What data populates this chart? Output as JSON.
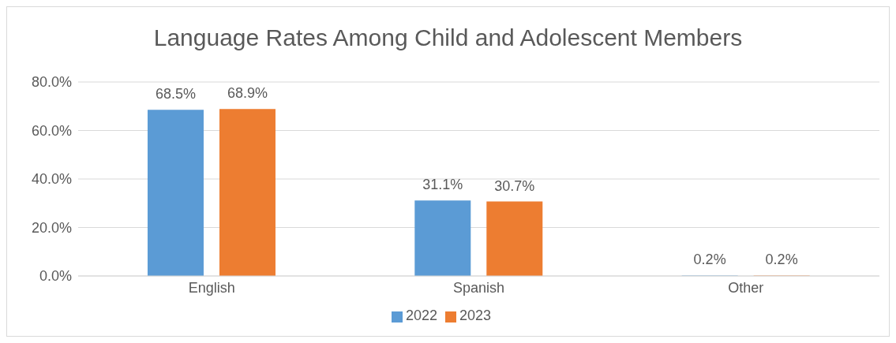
{
  "chart_data": {
    "type": "bar",
    "title": "Language Rates Among Child and Adolescent Members",
    "categories": [
      "English",
      "Spanish",
      "Other"
    ],
    "series": [
      {
        "name": "2022",
        "color": "#5b9bd5",
        "values": [
          68.5,
          31.1,
          0.2
        ],
        "value_labels": [
          "68.5%",
          "31.1%",
          "0.2%"
        ]
      },
      {
        "name": "2023",
        "color": "#ed7d31",
        "values": [
          68.9,
          30.7,
          0.2
        ],
        "value_labels": [
          "68.9%",
          "30.7%",
          "0.2%"
        ]
      }
    ],
    "ylim": [
      0,
      80
    ],
    "yticks": [
      {
        "value": 0,
        "label": "0.0%"
      },
      {
        "value": 20,
        "label": "20.0%"
      },
      {
        "value": 40,
        "label": "40.0%"
      },
      {
        "value": 60,
        "label": "60.0%"
      },
      {
        "value": 80,
        "label": "80.0%"
      }
    ],
    "grid": "y",
    "legend": "bottom"
  }
}
